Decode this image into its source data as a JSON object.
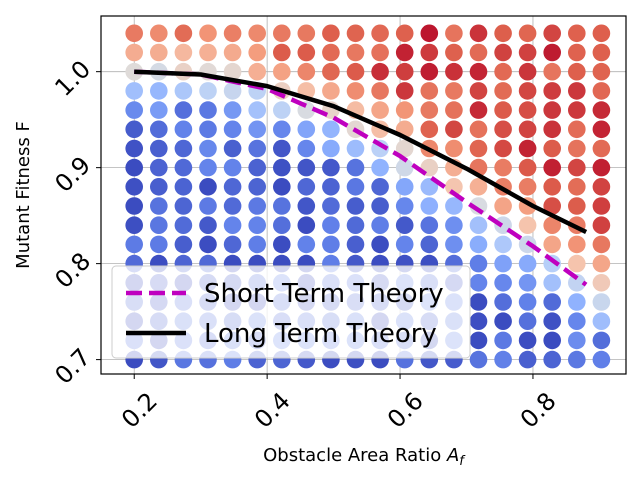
{
  "chart_data": {
    "type": "scatter",
    "xlabel": "Obstacle Area Ratio",
    "xlabel_symbol": "A",
    "xlabel_subscript": "f",
    "ylabel": "Mutant Fitness F",
    "xlim": [
      0.15,
      0.94
    ],
    "ylim": [
      0.685,
      1.058
    ],
    "xticks": [
      "0.2",
      "0.4",
      "0.6",
      "0.8"
    ],
    "yticks": [
      "0.7",
      "0.8",
      "0.9",
      "1.0"
    ],
    "grid": true,
    "legend_position": "lower-left",
    "colormap": "coolwarm",
    "colormap_range": [
      0,
      1
    ],
    "grid_points": {
      "x_start": 0.2,
      "x_step": 0.037,
      "x_count": 20,
      "y_start": 0.7,
      "y_step": 0.02,
      "y_count": 18
    },
    "series": [
      {
        "name": "Short Term Theory",
        "style": "dashed",
        "color": "#bf00bf",
        "x": [
          0.2,
          0.3,
          0.4,
          0.5,
          0.6,
          0.7,
          0.8,
          0.88
        ],
        "y": [
          1.0,
          0.997,
          0.982,
          0.952,
          0.912,
          0.864,
          0.818,
          0.778
        ]
      },
      {
        "name": "Long Term Theory",
        "style": "solid",
        "color": "#000000",
        "x": [
          0.2,
          0.3,
          0.4,
          0.5,
          0.6,
          0.7,
          0.8,
          0.88
        ],
        "y": [
          1.0,
          0.997,
          0.985,
          0.964,
          0.934,
          0.899,
          0.86,
          0.833
        ]
      }
    ]
  }
}
